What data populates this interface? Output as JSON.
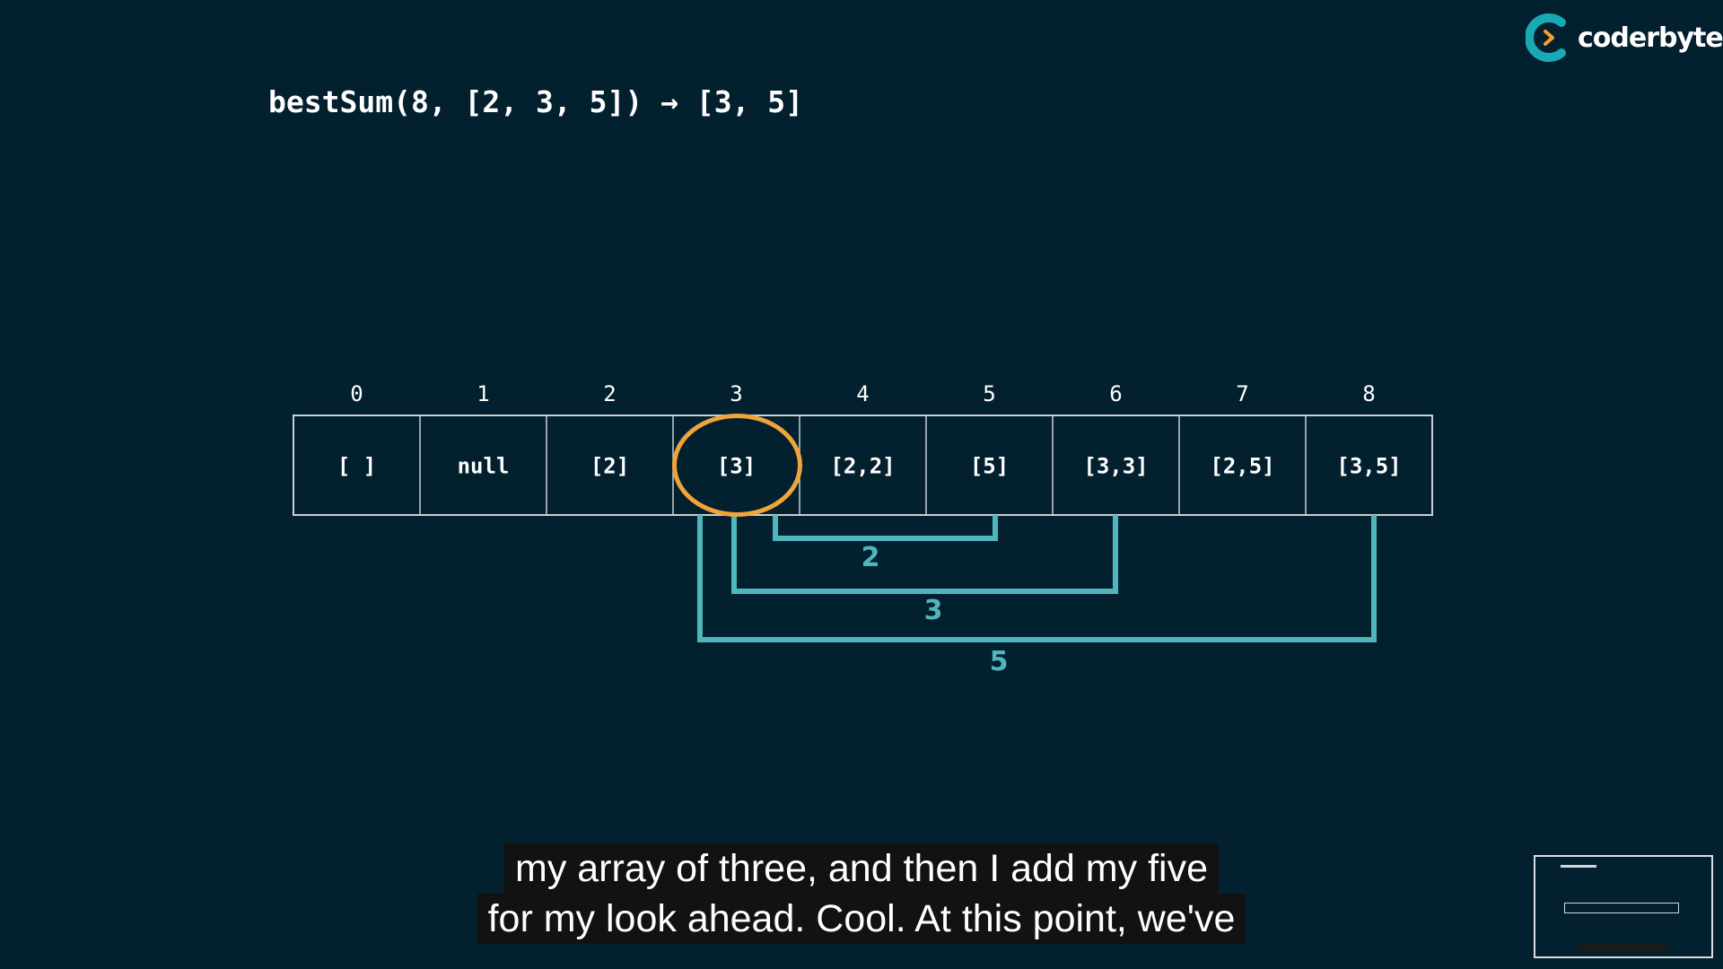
{
  "brand": {
    "name": "coderbyte",
    "accent_color": "#18a9b4",
    "chevron_color": "#f4a12a"
  },
  "title": "bestSum(8, [2, 3, 5]) → [3, 5]",
  "table": {
    "indices": [
      "0",
      "1",
      "2",
      "3",
      "4",
      "5",
      "6",
      "7",
      "8"
    ],
    "cells": [
      "[ ]",
      "null",
      "[2]",
      "[3]",
      "[2,2]",
      "[5]",
      "[3,3]",
      "[2,5]",
      "[3,5]"
    ],
    "highlighted_index": 3,
    "highlight_color": "#f0a43a",
    "border_color": "#c8d0d4"
  },
  "brackets": [
    {
      "label": "2",
      "from_index": 3,
      "to_index": 5
    },
    {
      "label": "3",
      "from_index": 3,
      "to_index": 6
    },
    {
      "label": "5",
      "from_index": 3,
      "to_index": 8
    }
  ],
  "bracket_color": "#4fb6be",
  "captions": [
    "my array of three, and then I add my five",
    "for my look ahead. Cool. At this point, we've"
  ]
}
